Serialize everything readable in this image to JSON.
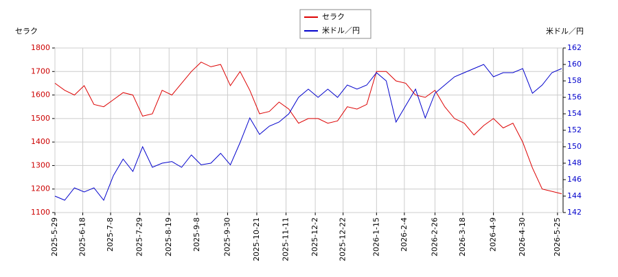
{
  "chart_data": {
    "type": "line",
    "y_label": "セラク",
    "y2_label": "米ドル／円",
    "x": [
      "2025-05-29",
      "2025-06-05",
      "2025-06-12",
      "2025-06-19",
      "2025-06-26",
      "2025-07-03",
      "2025-07-10",
      "2025-07-17",
      "2025-07-24",
      "2025-07-31",
      "2025-08-07",
      "2025-08-14",
      "2025-08-21",
      "2025-08-28",
      "2025-09-04",
      "2025-09-11",
      "2025-09-18",
      "2025-09-25",
      "2025-10-02",
      "2025-10-09",
      "2025-10-16",
      "2025-10-23",
      "2025-10-30",
      "2025-11-06",
      "2025-11-13",
      "2025-11-20",
      "2025-11-27",
      "2025-12-04",
      "2025-12-11",
      "2025-12-18",
      "2025-12-25",
      "2026-01-01",
      "2026-01-08",
      "2026-01-15",
      "2026-01-22",
      "2026-01-29",
      "2026-02-05",
      "2026-02-12",
      "2026-02-19",
      "2026-02-26",
      "2026-03-05",
      "2026-03-12",
      "2026-03-19",
      "2026-03-26",
      "2026-04-02",
      "2026-04-09",
      "2026-04-16",
      "2026-04-23",
      "2026-04-30",
      "2026-05-07",
      "2026-05-14",
      "2026-05-21",
      "2026-05-28"
    ],
    "series": [
      {
        "name": "セラク",
        "color": "#dd0000",
        "values": [
          1650,
          1620,
          1600,
          1640,
          1560,
          1550,
          1580,
          1610,
          1600,
          1510,
          1520,
          1620,
          1600,
          1650,
          1700,
          1740,
          1720,
          1730,
          1640,
          1700,
          1620,
          1520,
          1530,
          1570,
          1540,
          1480,
          1500,
          1500,
          1480,
          1490,
          1550,
          1540,
          1560,
          1700,
          1700,
          1660,
          1650,
          1600,
          1590,
          1620,
          1550,
          1500,
          1480,
          1430,
          1470,
          1500,
          1460,
          1480,
          1400,
          1290,
          1200,
          1190,
          1180
        ]
      },
      {
        "name": "米ドル／円",
        "color": "#0000cc",
        "axis": "y2",
        "values": [
          144.0,
          143.5,
          145.0,
          144.5,
          145.0,
          143.5,
          146.5,
          148.5,
          147.0,
          150.0,
          147.5,
          148.0,
          148.2,
          147.5,
          149.0,
          147.8,
          148.0,
          149.2,
          147.8,
          150.5,
          153.5,
          151.5,
          152.5,
          153.0,
          154.0,
          156.0,
          157.0,
          156.0,
          157.0,
          156.0,
          157.5,
          157.0,
          157.5,
          159.0,
          158.0,
          153.0,
          155.0,
          157.0,
          153.5,
          156.5,
          157.5,
          158.5,
          159.0,
          159.5,
          160.0,
          158.5,
          159.0,
          159.0,
          159.5,
          156.5,
          157.5,
          159.0,
          159.5
        ]
      }
    ],
    "xlim": [
      "2025-05-29",
      "2026-05-29"
    ],
    "xticks": [
      "2025-5-29",
      "2025-6-18",
      "2025-7-8",
      "2025-7-29",
      "2025-8-19",
      "2025-9-8",
      "2025-9-30",
      "2025-10-21",
      "2025-11-11",
      "2025-12-2",
      "2025-12-22",
      "2026-1-15",
      "2026-2-4",
      "2026-2-26",
      "2026-3-18",
      "2026-4-9",
      "2026-4-30",
      "2026-5-25"
    ],
    "ylim": [
      1100,
      1800
    ],
    "yticks": [
      1100,
      1200,
      1300,
      1400,
      1500,
      1600,
      1700,
      1800
    ],
    "y2lim": [
      142,
      162
    ],
    "y2ticks": [
      142,
      144,
      146,
      148,
      150,
      152,
      154,
      156,
      158,
      160,
      162
    ],
    "grid": true,
    "legend": "top"
  }
}
